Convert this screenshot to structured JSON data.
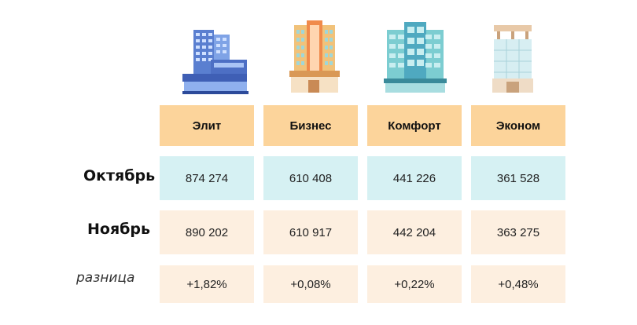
{
  "colors": {
    "header_bg": "#fcd49b",
    "october_bg": "#d6f1f3",
    "november_bg": "#fdefe0",
    "difference_bg": "#fdefe0"
  },
  "icons": [
    "elite-building-icon",
    "business-building-icon",
    "comfort-building-icon",
    "economy-building-icon"
  ],
  "columns": [
    "Элит",
    "Бизнес",
    "Комфорт",
    "Эконом"
  ],
  "rows": [
    {
      "label": "Октябрь",
      "values": [
        "874 274",
        "610 408",
        "441 226",
        "361 528"
      ]
    },
    {
      "label": "Ноябрь",
      "values": [
        "890 202",
        "610 917",
        "442 204",
        "363 275"
      ]
    },
    {
      "label": "разница",
      "values": [
        "+1,82%",
        "+0,08%",
        "+0,22%",
        "+0,48%"
      ]
    }
  ]
}
